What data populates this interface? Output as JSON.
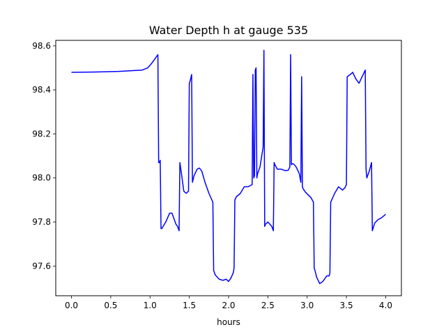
{
  "chart_data": {
    "type": "line",
    "title": "Water Depth h at gauge 535",
    "xlabel": "hours",
    "ylabel": "",
    "xlim": [
      -0.2,
      4.2
    ],
    "ylim": [
      97.465,
      98.625
    ],
    "xticks": [
      0.0,
      0.5,
      1.0,
      1.5,
      2.0,
      2.5,
      3.0,
      3.5,
      4.0
    ],
    "xtick_labels": [
      "0.0",
      "0.5",
      "1.0",
      "1.5",
      "2.0",
      "2.5",
      "3.0",
      "3.5",
      "4.0"
    ],
    "yticks": [
      97.6,
      97.8,
      98.0,
      98.2,
      98.4,
      98.6
    ],
    "ytick_labels": [
      "97.6",
      "97.8",
      "98.0",
      "98.2",
      "98.4",
      "98.6"
    ],
    "grid": false,
    "series": [
      {
        "color": "#0000ff",
        "x": [
          0.0,
          0.3,
          0.6,
          0.9,
          0.97,
          1.02,
          1.06,
          1.1,
          1.11,
          1.12,
          1.13,
          1.14,
          1.15,
          1.2,
          1.25,
          1.28,
          1.3,
          1.33,
          1.35,
          1.37,
          1.38,
          1.4,
          1.43,
          1.46,
          1.49,
          1.5,
          1.51,
          1.53,
          1.54,
          1.56,
          1.6,
          1.63,
          1.66,
          1.7,
          1.75,
          1.8,
          1.81,
          1.83,
          1.88,
          1.93,
          1.97,
          2.0,
          2.03,
          2.06,
          2.07,
          2.08,
          2.1,
          2.15,
          2.2,
          2.25,
          2.3,
          2.31,
          2.32,
          2.33,
          2.34,
          2.35,
          2.36,
          2.37,
          2.4,
          2.44,
          2.45,
          2.46,
          2.47,
          2.5,
          2.55,
          2.57,
          2.58,
          2.59,
          2.62,
          2.67,
          2.72,
          2.76,
          2.78,
          2.79,
          2.8,
          2.81,
          2.83,
          2.86,
          2.9,
          2.92,
          2.93,
          2.94,
          2.95,
          2.98,
          3.05,
          3.08,
          3.09,
          3.1,
          3.12,
          3.16,
          3.2,
          3.25,
          3.28,
          3.29,
          3.3,
          3.35,
          3.4,
          3.45,
          3.48,
          3.5,
          3.51,
          3.55,
          3.58,
          3.62,
          3.66,
          3.7,
          3.74,
          3.75,
          3.76,
          3.79,
          3.82,
          3.83,
          3.86,
          3.9,
          3.95,
          4.0
        ],
        "y": [
          98.48,
          98.481,
          98.484,
          98.49,
          98.5,
          98.52,
          98.54,
          98.56,
          98.07,
          98.07,
          98.08,
          97.77,
          97.77,
          97.8,
          97.84,
          97.84,
          97.82,
          97.79,
          97.78,
          97.76,
          98.07,
          98.02,
          97.94,
          97.93,
          97.94,
          98.43,
          98.44,
          98.47,
          97.98,
          98.01,
          98.04,
          98.045,
          98.03,
          97.98,
          97.93,
          97.89,
          97.58,
          97.56,
          97.54,
          97.535,
          97.54,
          97.53,
          97.545,
          97.57,
          97.59,
          97.9,
          97.915,
          97.93,
          97.96,
          97.96,
          97.97,
          98.47,
          98.0,
          98.01,
          98.49,
          98.5,
          98.0,
          98.02,
          98.05,
          98.14,
          98.58,
          97.78,
          97.79,
          97.8,
          97.78,
          97.76,
          98.07,
          98.06,
          98.04,
          98.04,
          98.033,
          98.035,
          98.05,
          98.56,
          98.06,
          98.065,
          98.063,
          98.05,
          98.02,
          97.98,
          98.46,
          97.96,
          97.95,
          97.935,
          97.91,
          97.89,
          97.59,
          97.58,
          97.55,
          97.52,
          97.53,
          97.555,
          97.555,
          97.57,
          97.89,
          97.93,
          97.96,
          97.945,
          97.955,
          97.97,
          98.46,
          98.47,
          98.48,
          98.45,
          98.43,
          98.46,
          98.49,
          98.04,
          98.0,
          98.03,
          98.07,
          97.76,
          97.795,
          97.81,
          97.82,
          97.835
        ]
      }
    ]
  }
}
